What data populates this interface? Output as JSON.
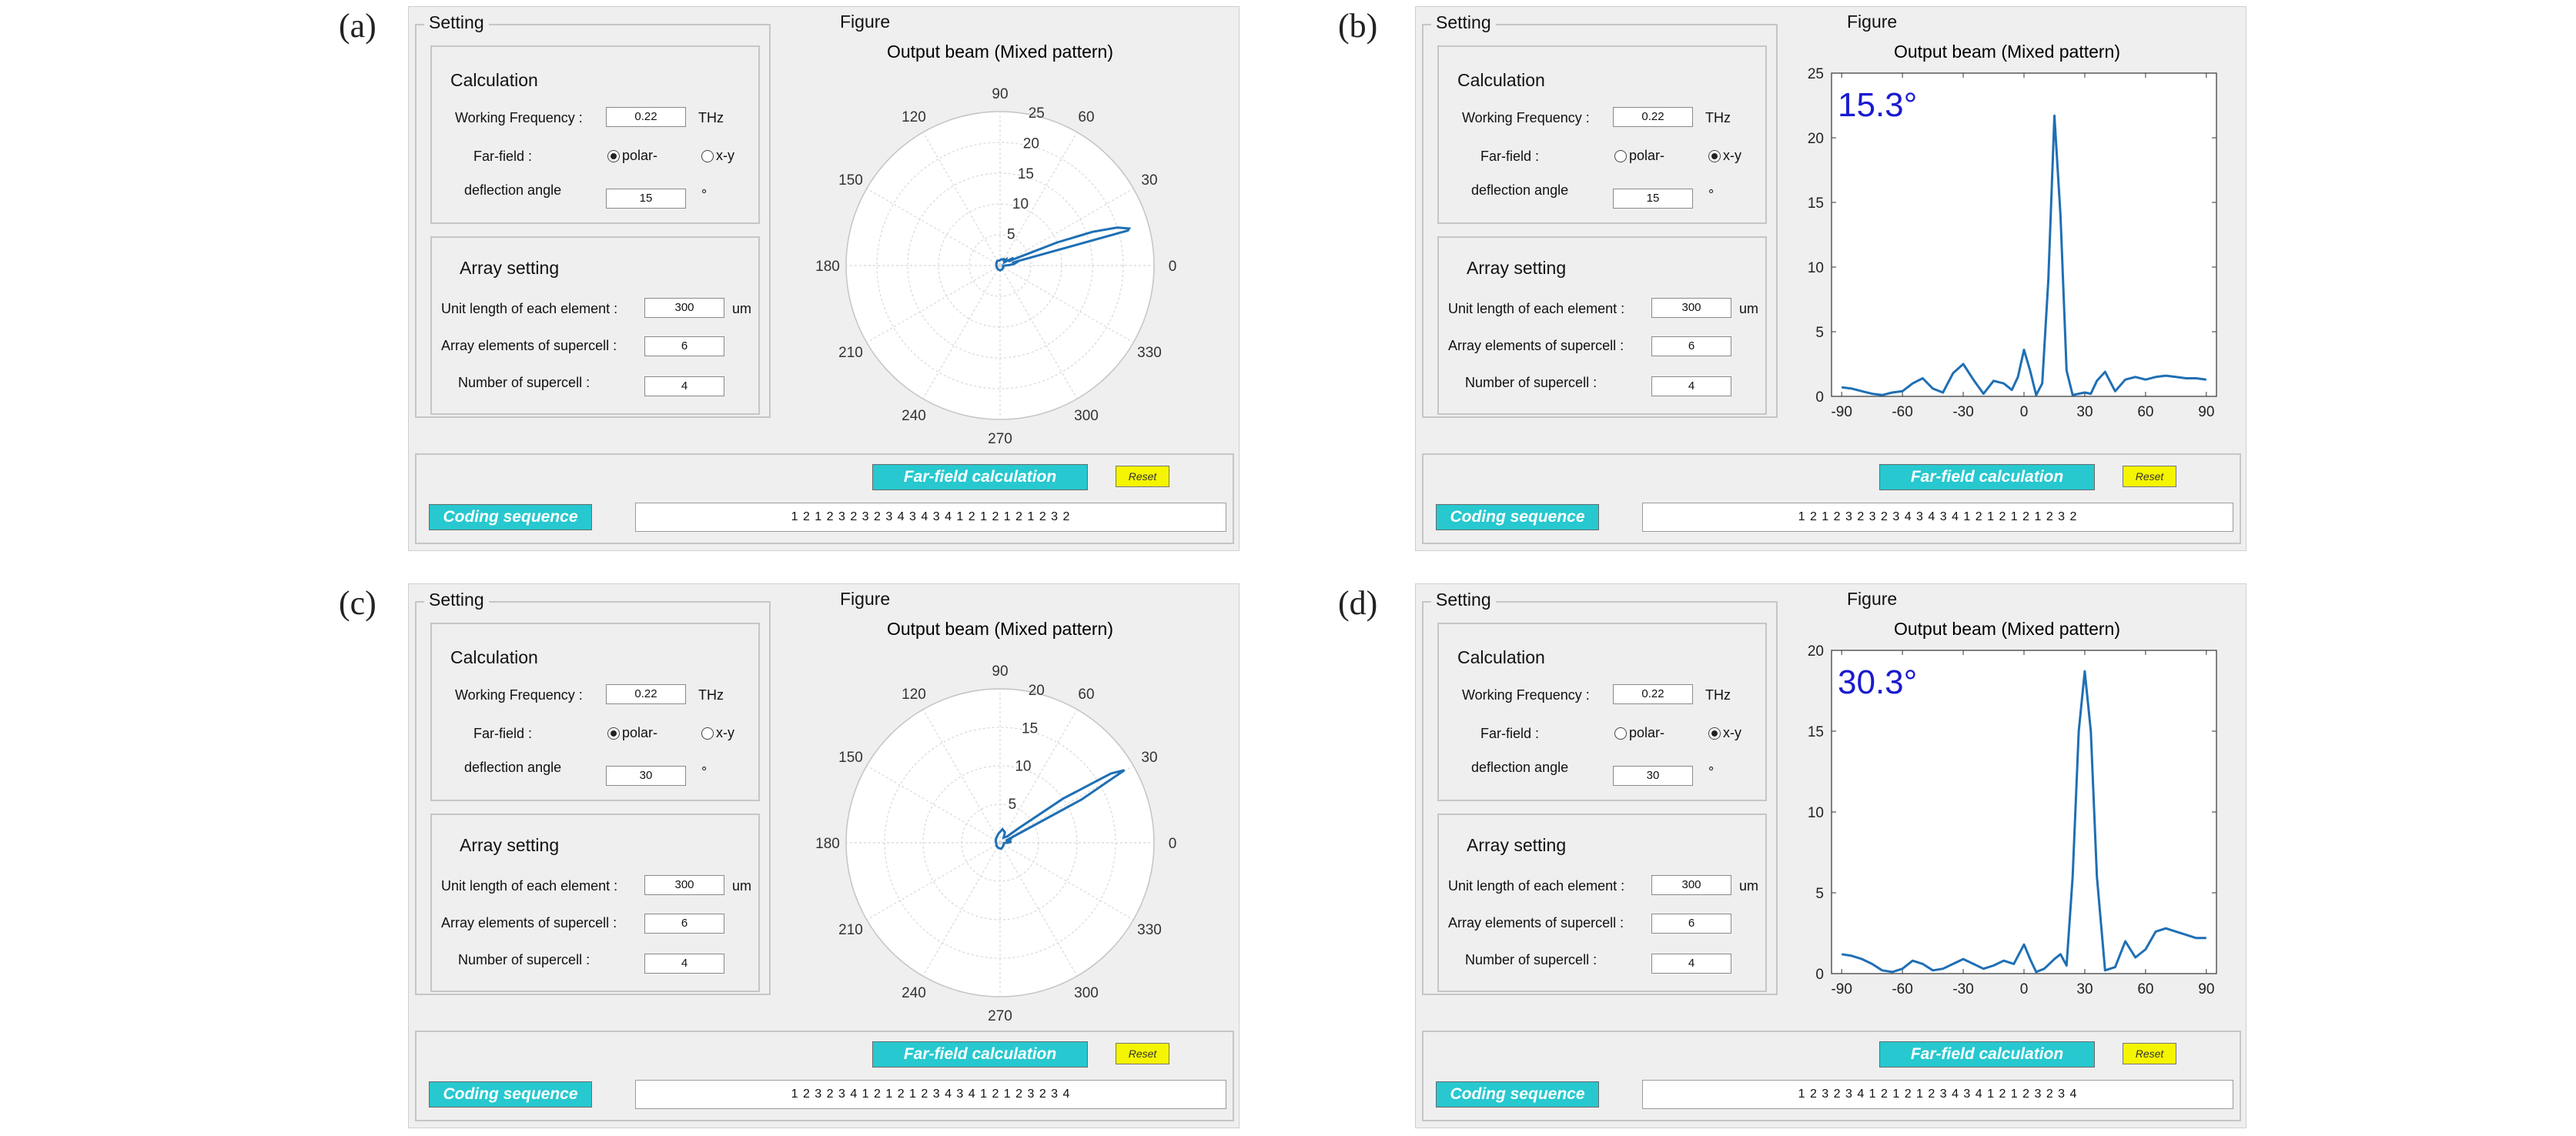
{
  "common": {
    "setting_legend": "Setting",
    "figure_legend": "Figure",
    "calculation_title": "Calculation",
    "working_frequency_label": "Working Frequency :",
    "working_frequency_value": "0.22",
    "frequency_unit": "THz",
    "farfield_label": "Far-field :",
    "polar_option": "polar-",
    "xy_option": "x-y",
    "deflection_label": "deflection angle",
    "degree_unit": "°",
    "array_title": "Array setting",
    "unit_length_label": "Unit length of each element :",
    "unit_length_value": "300",
    "unit_length_unit": "um",
    "array_elements_label": "Array elements of supercell :",
    "array_elements_value": "6",
    "num_supercell_label": "Number of supercell :",
    "num_supercell_value": "4",
    "calc_button": "Far-field calculation",
    "reset_button": "Reset",
    "coding_label": "Coding sequence",
    "plot_title": "Output beam (Mixed pattern)"
  },
  "colors": {
    "line": "#1f6fb4",
    "annotation": "#1a1ad0",
    "button": "#27c8cf",
    "reset": "#f5f500"
  },
  "panels": [
    {
      "label": "(a)",
      "mode": "polar",
      "deflection": "15",
      "coding": "1 2 1 2 3 2 3 2 3 4 3 4 3 4 1 2 1 2 1 2 1 2 3 2"
    },
    {
      "label": "(b)",
      "mode": "x-y",
      "deflection": "15",
      "coding": "1 2 1 2 3 2 3 2 3 4 3 4 3 4 1 2 1 2 1 2 1 2 3 2",
      "annotation": "15.3°"
    },
    {
      "label": "(c)",
      "mode": "polar",
      "deflection": "30",
      "coding": "1 2 3 2 3 4 1 2 1 2 1 2 3 4 3 4 1 2 1 2 3 2 3 4"
    },
    {
      "label": "(d)",
      "mode": "x-y",
      "deflection": "30",
      "coding": "1 2 3 2 3 4 1 2 1 2 1 2 3 4 3 4 1 2 1 2 3 2 3 4",
      "annotation": "30.3°"
    }
  ],
  "chart_data": [
    {
      "panel": "a",
      "type": "polar",
      "title": "Output beam (Mixed pattern)",
      "angle_ticks": [
        "0",
        "30",
        "60",
        "90",
        "120",
        "150",
        "180",
        "210",
        "240",
        "270",
        "300",
        "330"
      ],
      "radial_ticks": [
        "5",
        "10",
        "15",
        "20",
        "25"
      ],
      "rmax": 25,
      "series": [
        {
          "theta": [
            -3,
            0,
            3,
            6,
            9,
            12,
            14,
            15.3,
            16,
            18,
            20,
            22,
            24,
            26,
            28,
            30,
            33,
            36,
            40,
            45,
            50,
            60,
            80,
            100,
            120,
            150,
            180,
            210,
            240,
            270,
            300,
            330,
            345,
            355
          ],
          "r": [
            0.5,
            0.8,
            1.5,
            2.2,
            2.5,
            2,
            3,
            21.5,
            21.8,
            20,
            16,
            10,
            3,
            1.5,
            2,
            2.5,
            1.5,
            1,
            1.2,
            1.4,
            1,
            1.2,
            1,
            0.8,
            0.9,
            0.7,
            0.6,
            0.6,
            0.7,
            0.8,
            0.7,
            0.6,
            0.5,
            0.5
          ]
        }
      ]
    },
    {
      "panel": "b",
      "type": "line",
      "title": "Output beam (Mixed pattern)",
      "annotation": "15.3°",
      "xlim": [
        -95,
        95
      ],
      "ylim": [
        0,
        25
      ],
      "xticks": [
        "-90",
        "-60",
        "-30",
        "0",
        "30",
        "60",
        "90"
      ],
      "yticks": [
        "0",
        "5",
        "10",
        "15",
        "20",
        "25"
      ],
      "series": [
        {
          "x": [
            -90,
            -85,
            -80,
            -75,
            -70,
            -65,
            -60,
            -55,
            -50,
            -45,
            -40,
            -35,
            -30,
            -25,
            -20,
            -15,
            -10,
            -6,
            -3,
            0,
            3,
            6,
            9,
            12,
            15,
            18,
            21,
            24,
            27,
            30,
            33,
            36,
            40,
            45,
            50,
            55,
            60,
            65,
            70,
            75,
            80,
            85,
            90
          ],
          "y": [
            0.7,
            0.6,
            0.4,
            0.2,
            0.1,
            0.3,
            0.4,
            1,
            1.4,
            0.6,
            0.3,
            1.8,
            2.5,
            1.3,
            0.2,
            1.2,
            1,
            0.5,
            1.5,
            3.6,
            2,
            0.1,
            1,
            9,
            21.7,
            14,
            2,
            0.1,
            0.2,
            0.3,
            0.2,
            1.2,
            1.9,
            0.4,
            1.3,
            1.5,
            1.3,
            1.5,
            1.6,
            1.5,
            1.4,
            1.4,
            1.3
          ]
        }
      ]
    },
    {
      "panel": "c",
      "type": "polar",
      "title": "Output beam (Mixed pattern)",
      "angle_ticks": [
        "0",
        "30",
        "60",
        "90",
        "120",
        "150",
        "180",
        "210",
        "240",
        "270",
        "300",
        "330"
      ],
      "radial_ticks": [
        "5",
        "10",
        "15",
        "20"
      ],
      "rmax": 20,
      "series": [
        {
          "theta": [
            -3,
            0,
            5,
            10,
            15,
            20,
            25,
            28,
            30.3,
            32,
            35,
            38,
            42,
            48,
            55,
            65,
            80,
            100,
            130,
            160,
            190,
            220,
            250,
            280,
            310,
            340,
            355
          ],
          "r": [
            0.5,
            1,
            1.5,
            1,
            1.2,
            0.8,
            2,
            12,
            18.7,
            17,
            10,
            3,
            1.2,
            1,
            0.8,
            1.5,
            1.8,
            1.2,
            0.8,
            0.6,
            0.5,
            0.6,
            0.7,
            0.8,
            0.6,
            0.5,
            0.5
          ]
        }
      ]
    },
    {
      "panel": "d",
      "type": "line",
      "title": "Output beam (Mixed pattern)",
      "annotation": "30.3°",
      "xlim": [
        -95,
        95
      ],
      "ylim": [
        0,
        20
      ],
      "xticks": [
        "-90",
        "-60",
        "-30",
        "0",
        "30",
        "60",
        "90"
      ],
      "yticks": [
        "0",
        "5",
        "10",
        "15",
        "20"
      ],
      "series": [
        {
          "x": [
            -90,
            -85,
            -80,
            -75,
            -70,
            -65,
            -60,
            -55,
            -50,
            -45,
            -40,
            -35,
            -30,
            -25,
            -20,
            -15,
            -10,
            -5,
            0,
            3,
            6,
            10,
            15,
            18,
            21,
            24,
            27,
            30,
            33,
            36,
            40,
            45,
            50,
            55,
            60,
            65,
            70,
            75,
            80,
            85,
            90
          ],
          "y": [
            1.2,
            1.1,
            0.9,
            0.6,
            0.2,
            0.1,
            0.3,
            0.8,
            0.6,
            0.2,
            0.3,
            0.6,
            0.9,
            0.6,
            0.3,
            0.5,
            0.8,
            0.6,
            1.8,
            0.9,
            0.1,
            0.3,
            0.9,
            1.2,
            0.5,
            6,
            15,
            18.7,
            15,
            6,
            0.2,
            0.4,
            2,
            1,
            1.5,
            2.6,
            2.8,
            2.6,
            2.4,
            2.2,
            2.2
          ]
        }
      ]
    }
  ]
}
